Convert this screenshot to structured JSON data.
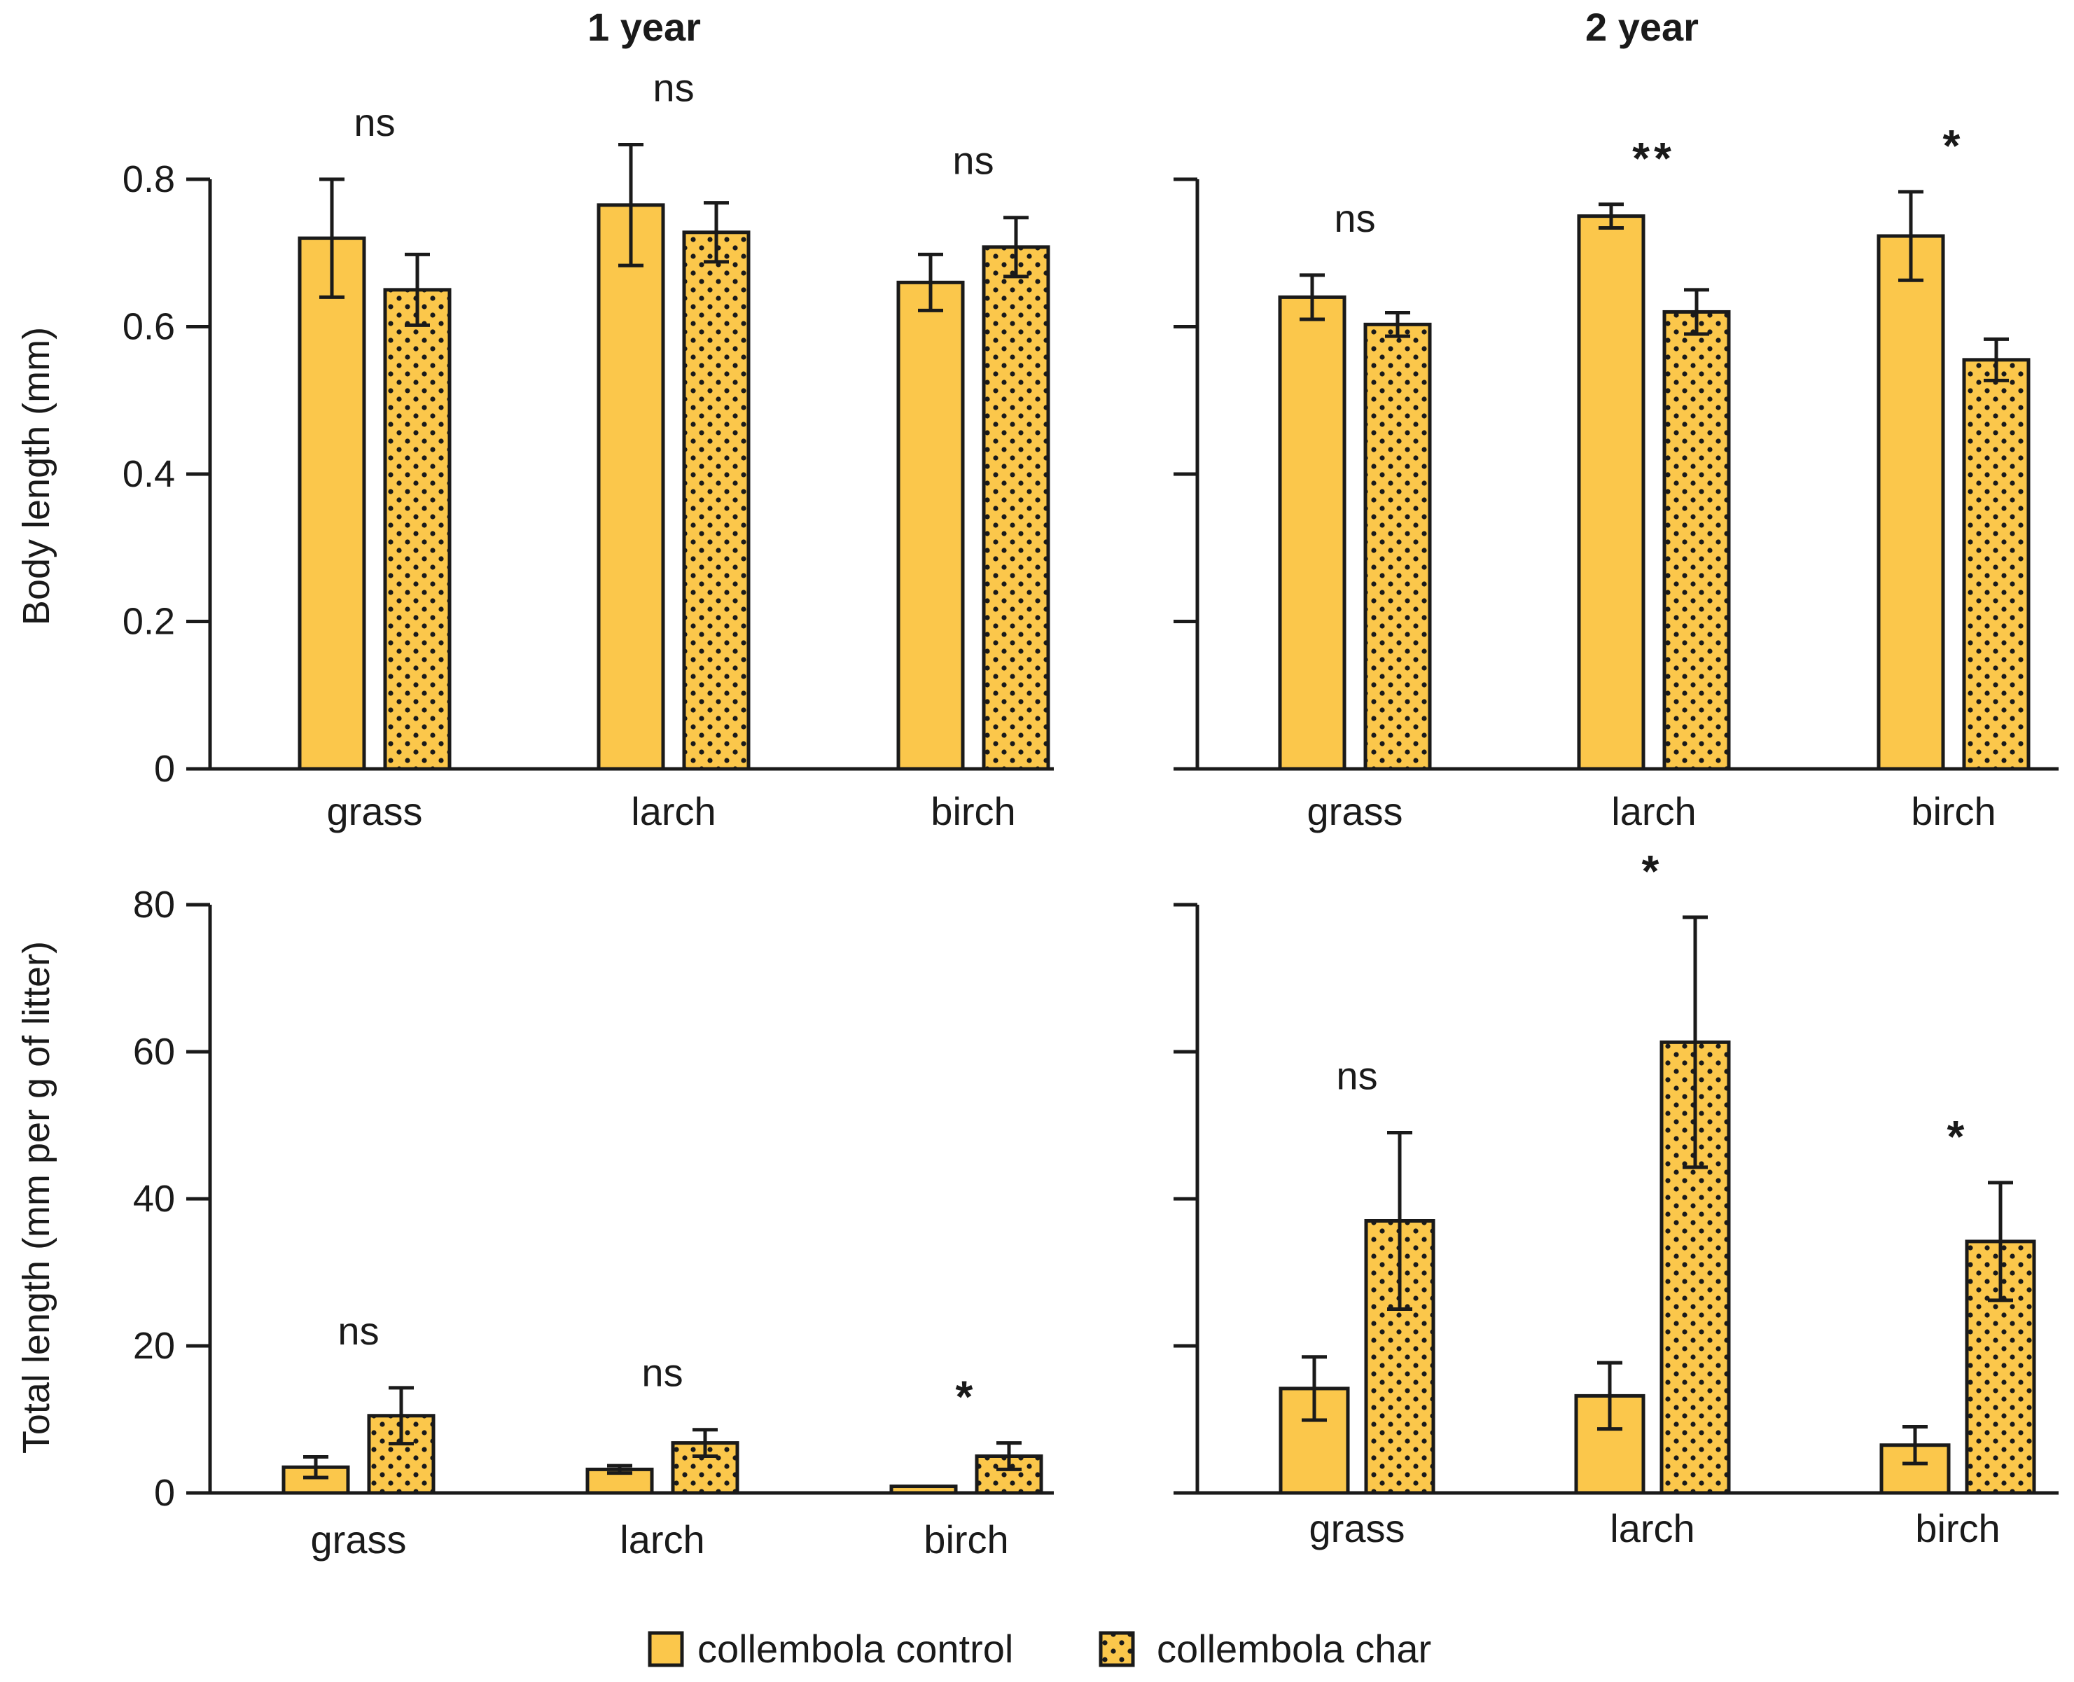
{
  "colors": {
    "bar_fill": "#FBC74B",
    "stroke": "#1a1a1a",
    "dot": "#1a1a1a"
  },
  "legend": [
    {
      "label": "collembola control",
      "pattern": "solid"
    },
    {
      "label": "collembola char",
      "pattern": "dotted"
    }
  ],
  "chart_data": [
    {
      "id": "p1",
      "type": "bar",
      "title": "1 year",
      "ylabel": "Body length (mm)",
      "xlabel": "",
      "categories": [
        "grass",
        "larch",
        "birch"
      ],
      "ylim": [
        0,
        0.8
      ],
      "yticks": [
        "0",
        "0.2",
        "0.4",
        "0.6",
        "0.8"
      ],
      "series": [
        {
          "name": "collembola control",
          "values": [
            0.72,
            0.765,
            0.66
          ],
          "errors": [
            0.08,
            0.082,
            0.038
          ]
        },
        {
          "name": "collembola char",
          "values": [
            0.65,
            0.728,
            0.708
          ],
          "errors": [
            0.048,
            0.04,
            0.04
          ]
        }
      ],
      "significance": [
        "ns",
        "ns",
        "ns"
      ]
    },
    {
      "id": "p2",
      "type": "bar",
      "title": "2 year",
      "ylabel": "",
      "xlabel": "",
      "categories": [
        "grass",
        "larch",
        "birch"
      ],
      "ylim": [
        0,
        0.8
      ],
      "yticks": [],
      "series": [
        {
          "name": "collembola control",
          "values": [
            0.64,
            0.75,
            0.723
          ],
          "errors": [
            0.03,
            0.016,
            0.06
          ]
        },
        {
          "name": "collembola char",
          "values": [
            0.603,
            0.62,
            0.555
          ],
          "errors": [
            0.016,
            0.03,
            0.028
          ]
        }
      ],
      "significance": [
        "ns",
        "**",
        "*"
      ]
    },
    {
      "id": "p3",
      "type": "bar",
      "title": "",
      "ylabel": "Total length (mm per g of litter)",
      "xlabel": "",
      "categories": [
        "grass",
        "larch",
        "birch"
      ],
      "ylim": [
        0,
        80
      ],
      "yticks": [
        "0",
        "20",
        "40",
        "60",
        "80"
      ],
      "series": [
        {
          "name": "collembola control",
          "values": [
            3.5,
            3.2,
            0.9
          ],
          "errors": [
            1.4,
            0.5,
            0
          ]
        },
        {
          "name": "collembola char",
          "values": [
            10.5,
            6.8,
            5.0
          ],
          "errors": [
            3.8,
            1.8,
            1.8
          ]
        }
      ],
      "significance": [
        "ns",
        "ns",
        "*"
      ]
    },
    {
      "id": "p4",
      "type": "bar",
      "title": "",
      "ylabel": "",
      "xlabel": "",
      "categories": [
        "grass",
        "larch",
        "birch"
      ],
      "ylim": [
        0,
        80
      ],
      "yticks": [],
      "series": [
        {
          "name": "collembola control",
          "values": [
            14.2,
            13.2,
            6.5
          ],
          "errors": [
            4.3,
            4.5,
            2.5
          ]
        },
        {
          "name": "collembola char",
          "values": [
            37.0,
            61.3,
            34.2
          ],
          "errors": [
            12.0,
            17.0,
            8.0
          ]
        }
      ],
      "significance": [
        "ns",
        "*",
        "*"
      ]
    }
  ]
}
